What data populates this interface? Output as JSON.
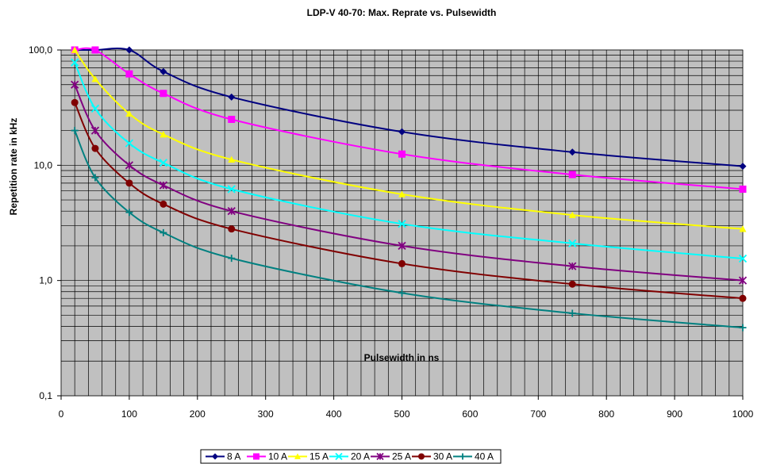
{
  "chart_data": {
    "type": "line",
    "title": "LDP-V 40-70: Max. Reprate vs. Pulsewidth",
    "xlabel": "Pulsewidth in ns",
    "ylabel": "Repetition rate in kHz",
    "xlim": [
      0,
      1000
    ],
    "ylim": [
      0.1,
      100
    ],
    "yscale": "log",
    "grid": true,
    "legend_position": "bottom",
    "plot_background": "#C0C0C0",
    "x_ticks": [
      {
        "value": 0,
        "label": "0"
      },
      {
        "value": 100,
        "label": "100"
      },
      {
        "value": 200,
        "label": "200"
      },
      {
        "value": 300,
        "label": "300"
      },
      {
        "value": 400,
        "label": "400"
      },
      {
        "value": 500,
        "label": "500"
      },
      {
        "value": 600,
        "label": "600"
      },
      {
        "value": 700,
        "label": "700"
      },
      {
        "value": 800,
        "label": "800"
      },
      {
        "value": 900,
        "label": "900"
      },
      {
        "value": 1000,
        "label": "1000"
      }
    ],
    "y_ticks": [
      {
        "value": 0.1,
        "label": "0,1"
      },
      {
        "value": 1,
        "label": "1,0"
      },
      {
        "value": 10,
        "label": "10,0"
      },
      {
        "value": 100,
        "label": "100,0"
      }
    ],
    "x": [
      20,
      50,
      100,
      150,
      250,
      500,
      750,
      1000
    ],
    "series": [
      {
        "name": "8 A",
        "color": "#000080",
        "marker": "diamond",
        "values": [
          100,
          100,
          100,
          65,
          39,
          19.5,
          13,
          9.8
        ]
      },
      {
        "name": "10 A",
        "color": "#FF00FF",
        "marker": "square",
        "values": [
          100,
          100,
          62,
          42,
          25,
          12.5,
          8.3,
          6.2
        ]
      },
      {
        "name": "15 A",
        "color": "#FFFF00",
        "marker": "triangle",
        "values": [
          100,
          56,
          28,
          18.5,
          11.2,
          5.6,
          3.7,
          2.8
        ]
      },
      {
        "name": "20 A",
        "color": "#00FFFF",
        "marker": "x",
        "values": [
          78,
          31,
          15.5,
          10.5,
          6.2,
          3.1,
          2.1,
          1.55
        ]
      },
      {
        "name": "25 A",
        "color": "#800080",
        "marker": "star",
        "values": [
          50,
          20,
          10,
          6.7,
          4,
          2,
          1.33,
          1.0
        ]
      },
      {
        "name": "30 A",
        "color": "#800000",
        "marker": "circle",
        "values": [
          35,
          14,
          7,
          4.6,
          2.8,
          1.4,
          0.93,
          0.7
        ]
      },
      {
        "name": "40 A",
        "color": "#008080",
        "marker": "plus",
        "values": [
          20,
          7.8,
          3.9,
          2.6,
          1.56,
          0.78,
          0.52,
          0.39
        ]
      }
    ]
  }
}
